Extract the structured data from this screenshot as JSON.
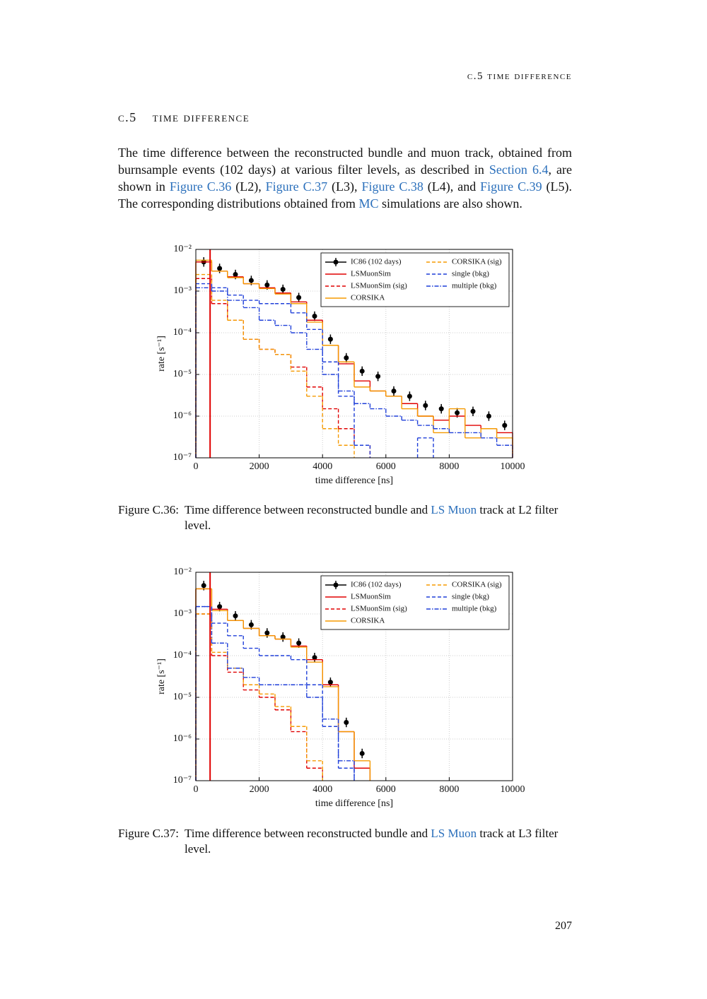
{
  "header": "c.5 time difference",
  "section": {
    "number": "c.5",
    "title": "time difference"
  },
  "paragraph": [
    {
      "text": "The time difference between the reconstructed bundle and muon track, obtained from burnsample events (102 days) at various filter levels, as described in "
    },
    {
      "text": "Section 6.4",
      "link": true
    },
    {
      "text": ", are shown in "
    },
    {
      "text": "Figure C.36",
      "link": true
    },
    {
      "text": " (L2), "
    },
    {
      "text": "Figure C.37",
      "link": true
    },
    {
      "text": " (L3), "
    },
    {
      "text": "Figure C.38",
      "link": true
    },
    {
      "text": " (L4), and "
    },
    {
      "text": "Figure C.39",
      "link": true
    },
    {
      "text": " (L5). The corresponding distributions obtained from "
    },
    {
      "text": "MC",
      "link": true
    },
    {
      "text": " simulations are also shown."
    }
  ],
  "chart_data": [
    {
      "type": "histogram",
      "xlabel": "time difference [ns]",
      "ylabel": "rate [s⁻¹]",
      "log_y": true,
      "grid": true,
      "legend": "upper right",
      "legend_columns": 2,
      "xlim": [
        0,
        10000
      ],
      "xticks": [
        0,
        2000,
        4000,
        6000,
        8000,
        10000
      ],
      "ylim": [
        1e-07,
        0.01
      ],
      "yticks": [
        {
          "value": 1e-07,
          "label": "10⁻⁷"
        },
        {
          "value": 1e-06,
          "label": "10⁻⁶"
        },
        {
          "value": 1e-05,
          "label": "10⁻⁵"
        },
        {
          "value": 0.0001,
          "label": "10⁻⁴"
        },
        {
          "value": 0.001,
          "label": "10⁻³"
        },
        {
          "value": 0.01,
          "label": "10⁻²"
        }
      ],
      "vline": {
        "x": 450,
        "color": "#e00000"
      },
      "bins": [
        0,
        500,
        1000,
        1500,
        2000,
        2500,
        3000,
        3500,
        4000,
        4500,
        5000,
        5500,
        6000,
        6500,
        7000,
        7500,
        8000,
        8500,
        9000,
        9500,
        10000
      ],
      "series": [
        {
          "name": "IC86 (102 days)",
          "color": "#000000",
          "style": "errorbar",
          "values": [
            0.005,
            0.0035,
            0.0025,
            0.0018,
            0.0014,
            0.0011,
            0.0007,
            0.00025,
            7e-05,
            2.5e-05,
            1.2e-05,
            9e-06,
            4e-06,
            3e-06,
            1.8e-06,
            1.5e-06,
            1.2e-06,
            1.3e-06,
            1e-06,
            6e-07
          ]
        },
        {
          "name": "LSMuonSim",
          "color": "#e00000",
          "style": "solid",
          "values": [
            0.005,
            0.003,
            0.0022,
            0.0015,
            0.0012,
            0.0009,
            0.00055,
            0.0002,
            5e-05,
            1.8e-05,
            7e-06,
            4e-06,
            3e-06,
            2e-06,
            1e-06,
            8e-07,
            1e-06,
            6e-07,
            5e-07,
            4e-07
          ]
        },
        {
          "name": "LSMuonSim (sig)",
          "color": "#e00000",
          "style": "dashed",
          "values": [
            0.002,
            0.0005,
            0.0002,
            7e-05,
            4e-05,
            3e-05,
            1.5e-05,
            5e-06,
            1.5e-06,
            5e-07,
            2e-07,
            null,
            null,
            null,
            null,
            null,
            null,
            null,
            null,
            null
          ]
        },
        {
          "name": "CORSIKA",
          "color": "#f59a00",
          "style": "solid",
          "values": [
            0.0055,
            0.003,
            0.0021,
            0.0015,
            0.00115,
            0.00085,
            0.0005,
            0.00018,
            5e-05,
            2e-05,
            5e-06,
            4e-06,
            3e-06,
            1.5e-06,
            1e-06,
            4e-07,
            1.5e-06,
            3e-07,
            5e-07,
            3e-07
          ]
        },
        {
          "name": "CORSIKA (sig)",
          "color": "#f59a00",
          "style": "dashed",
          "values": [
            0.0025,
            0.0006,
            0.0002,
            7e-05,
            4e-05,
            3e-05,
            1.2e-05,
            3e-06,
            5e-07,
            2e-07,
            null,
            null,
            null,
            null,
            null,
            null,
            null,
            null,
            null,
            null
          ]
        },
        {
          "name": "single (bkg)",
          "color": "#1f3fd9",
          "style": "dashed",
          "values": [
            0.0015,
            0.0012,
            0.0008,
            0.0006,
            0.0005,
            0.0005,
            0.0003,
            0.00012,
            2e-05,
            3e-06,
            2e-07,
            null,
            null,
            null,
            3e-07,
            null,
            null,
            null,
            null,
            null
          ]
        },
        {
          "name": "multiple (bkg)",
          "color": "#1f3fd9",
          "style": "dashdot",
          "values": [
            0.0012,
            0.001,
            0.0006,
            0.0004,
            0.0002,
            0.00015,
            0.0001,
            4e-05,
            1e-05,
            4e-06,
            2e-06,
            1.5e-06,
            1e-06,
            8e-07,
            6e-07,
            5e-07,
            4e-07,
            4e-07,
            3e-07,
            2e-07
          ]
        }
      ]
    },
    {
      "type": "histogram",
      "xlabel": "time difference [ns]",
      "ylabel": "rate [s⁻¹]",
      "log_y": true,
      "grid": true,
      "legend": "upper right",
      "legend_columns": 2,
      "xlim": [
        0,
        10000
      ],
      "xticks": [
        0,
        2000,
        4000,
        6000,
        8000,
        10000
      ],
      "ylim": [
        1e-07,
        0.01
      ],
      "yticks": [
        {
          "value": 1e-07,
          "label": "10⁻⁷"
        },
        {
          "value": 1e-06,
          "label": "10⁻⁶"
        },
        {
          "value": 1e-05,
          "label": "10⁻⁵"
        },
        {
          "value": 0.0001,
          "label": "10⁻⁴"
        },
        {
          "value": 0.001,
          "label": "10⁻³"
        },
        {
          "value": 0.01,
          "label": "10⁻²"
        }
      ],
      "vline": {
        "x": 450,
        "color": "#e00000"
      },
      "bins": [
        0,
        500,
        1000,
        1500,
        2000,
        2500,
        3000,
        3500,
        4000,
        4500,
        5000,
        5500,
        6000,
        6500,
        7000,
        7500,
        8000,
        8500,
        9000,
        9500,
        10000
      ],
      "series": [
        {
          "name": "IC86 (102 days)",
          "color": "#000000",
          "style": "errorbar",
          "values": [
            0.0048,
            0.0015,
            0.0009,
            0.00055,
            0.00035,
            0.00028,
            0.0002,
            9e-05,
            2.3e-05,
            2.5e-06,
            4.5e-07,
            null,
            null,
            null,
            null,
            null,
            null,
            null,
            null,
            null
          ]
        },
        {
          "name": "LSMuonSim",
          "color": "#e00000",
          "style": "solid",
          "values": [
            0.004,
            0.0013,
            0.0007,
            0.00045,
            0.0003,
            0.00025,
            0.00017,
            8e-05,
            2e-05,
            1.5e-06,
            2e-07,
            null,
            null,
            null,
            null,
            null,
            null,
            null,
            null,
            null
          ]
        },
        {
          "name": "LSMuonSim (sig)",
          "color": "#e00000",
          "style": "dashed",
          "values": [
            0.001,
            0.0001,
            4e-05,
            1.5e-05,
            1e-05,
            5e-06,
            1.5e-06,
            2e-07,
            null,
            null,
            null,
            null,
            null,
            null,
            null,
            null,
            null,
            null,
            null,
            null
          ]
        },
        {
          "name": "CORSIKA",
          "color": "#f59a00",
          "style": "solid",
          "values": [
            0.004,
            0.0012,
            0.0007,
            0.00045,
            0.0003,
            0.00025,
            0.00016,
            7e-05,
            1.8e-05,
            1.5e-06,
            3e-07,
            null,
            null,
            null,
            null,
            null,
            null,
            null,
            null,
            null
          ]
        },
        {
          "name": "CORSIKA (sig)",
          "color": "#f59a00",
          "style": "dashed",
          "values": [
            0.001,
            0.00012,
            5e-05,
            2e-05,
            1.2e-05,
            6e-06,
            2e-06,
            3e-07,
            null,
            null,
            null,
            null,
            null,
            null,
            null,
            null,
            null,
            null,
            null,
            null
          ]
        },
        {
          "name": "single (bkg)",
          "color": "#1f3fd9",
          "style": "dashed",
          "values": [
            0.0015,
            0.0006,
            0.0003,
            0.00015,
            0.0001,
            0.0001,
            8e-05,
            2e-05,
            2e-06,
            2e-07,
            null,
            null,
            null,
            null,
            null,
            null,
            null,
            null,
            null,
            null
          ]
        },
        {
          "name": "multiple (bkg)",
          "color": "#1f3fd9",
          "style": "dashdot",
          "values": [
            0.0015,
            0.0002,
            5e-05,
            3e-05,
            2e-05,
            2e-05,
            2e-05,
            1e-05,
            3e-06,
            3e-07,
            null,
            null,
            null,
            null,
            null,
            null,
            null,
            null,
            null,
            null
          ]
        }
      ]
    }
  ],
  "captions": [
    {
      "label": "Figure C.36:",
      "parts": [
        {
          "text": "Time difference between reconstructed bundle and "
        },
        {
          "text": "LS Muon",
          "link": true
        },
        {
          "text": " track at L2 filter level."
        }
      ]
    },
    {
      "label": "Figure C.37:",
      "parts": [
        {
          "text": "Time difference between reconstructed bundle and "
        },
        {
          "text": "LS Muon",
          "link": true
        },
        {
          "text": " track at L3 filter level."
        }
      ]
    }
  ],
  "page_number": "207"
}
